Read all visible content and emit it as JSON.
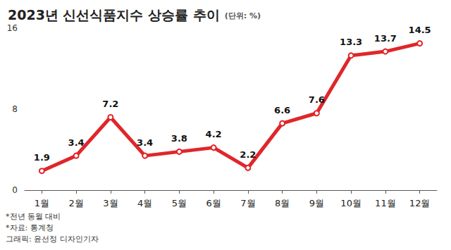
{
  "chart_data": {
    "type": "line",
    "title": "2023년 신선식품지수 상승률 추이",
    "subtitle": "(단위: %)",
    "categories": [
      "1월",
      "2월",
      "3월",
      "4월",
      "5월",
      "6월",
      "7월",
      "8월",
      "9월",
      "10월",
      "11월",
      "12월"
    ],
    "values": [
      1.9,
      3.4,
      7.2,
      3.4,
      3.8,
      4.2,
      2.2,
      6.6,
      7.6,
      13.3,
      13.7,
      14.5
    ],
    "color": "#e0262a",
    "ylim": [
      0,
      16
    ],
    "yticks": [
      0,
      8,
      16
    ],
    "grid": false,
    "data_labels": true,
    "marker": "circle",
    "line_style": "solid",
    "annotations": [
      "*전년 동월 대비",
      "*자료: 통계청",
      "그래픽: 윤선정 디자인기자"
    ]
  }
}
